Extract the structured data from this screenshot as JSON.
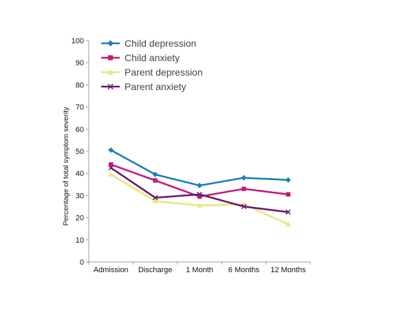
{
  "chart_data": {
    "type": "line",
    "title": "",
    "xlabel": "",
    "ylabel": "Percentage of total symptom severity",
    "categories": [
      "Admission",
      "Discharge",
      "1 Month",
      "6 Months",
      "12 Months"
    ],
    "ylim": [
      0,
      100
    ],
    "yticks": [
      0,
      10,
      20,
      30,
      40,
      50,
      60,
      70,
      80,
      90,
      100
    ],
    "grid": false,
    "legend_position": "top-left",
    "series": [
      {
        "name": "Child depression",
        "values": [
          50.5,
          39.5,
          34.5,
          38,
          37
        ],
        "color": "#1a7fb8",
        "marker": "diamond"
      },
      {
        "name": "Child anxiety",
        "values": [
          44,
          36.8,
          29.5,
          33,
          30.5
        ],
        "color": "#c8187a",
        "marker": "square"
      },
      {
        "name": "Parent depression",
        "values": [
          39.5,
          27.5,
          25.5,
          26,
          17
        ],
        "color": "#e6e67a",
        "marker": "triangle"
      },
      {
        "name": "Parent anxiety",
        "values": [
          42.5,
          29,
          30.5,
          25,
          22.5
        ],
        "color": "#6b1a6b",
        "marker": "x"
      }
    ]
  }
}
